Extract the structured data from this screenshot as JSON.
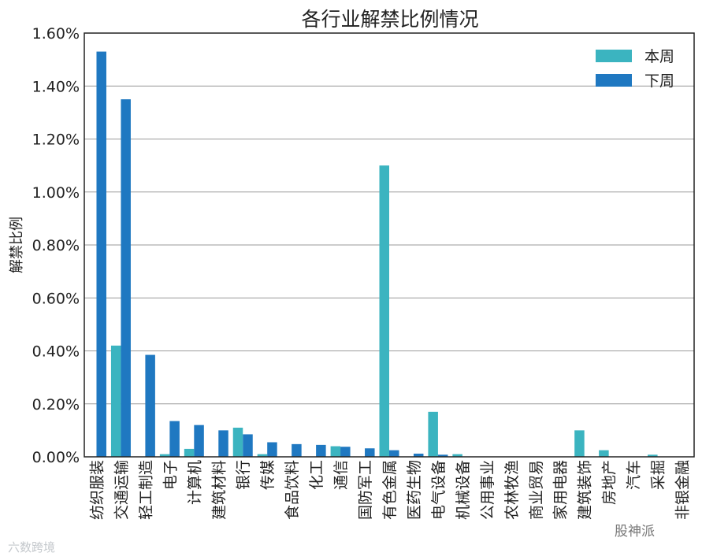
{
  "chart_data": {
    "type": "bar",
    "title": "各行业解禁比例情况",
    "xlabel": "",
    "ylabel": "解禁比例",
    "ylim": [
      0,
      1.6
    ],
    "yticks": [
      0,
      0.2,
      0.4,
      0.6,
      0.8,
      1.0,
      1.2,
      1.4,
      1.6
    ],
    "ytick_labels": [
      "0.00%",
      "0.20%",
      "0.40%",
      "0.60%",
      "0.80%",
      "1.00%",
      "1.20%",
      "1.40%",
      "1.60%"
    ],
    "grid": true,
    "legend_position": "top-right",
    "categories": [
      "纺织服装",
      "交通运输",
      "轻工制造",
      "电子",
      "计算机",
      "建筑材料",
      "银行",
      "传媒",
      "食品饮料",
      "化工",
      "通信",
      "国防军工",
      "有色金属",
      "医药生物",
      "电气设备",
      "机械设备",
      "公用事业",
      "农林牧渔",
      "商业贸易",
      "家用电器",
      "建筑装饰",
      "房地产",
      "汽车",
      "采掘",
      "非银金融"
    ],
    "series": [
      {
        "name": "本周",
        "color": "#3bb4c0",
        "values": [
          0,
          0.42,
          0,
          0.01,
          0.03,
          0,
          0.11,
          0.01,
          0,
          0,
          0.04,
          0,
          1.1,
          0,
          0.17,
          0.01,
          0,
          0,
          0,
          0,
          0.1,
          0.025,
          0,
          0.008,
          0
        ]
      },
      {
        "name": "下周",
        "color": "#1f78c1",
        "values": [
          1.53,
          1.35,
          0.385,
          0.135,
          0.12,
          0.1,
          0.085,
          0.055,
          0.048,
          0.045,
          0.038,
          0.032,
          0.025,
          0.012,
          0.008,
          0,
          0,
          0,
          0,
          0,
          0,
          0,
          0,
          0,
          0
        ]
      }
    ]
  },
  "watermarks": {
    "left": "六数跨境",
    "right": "股神派"
  }
}
